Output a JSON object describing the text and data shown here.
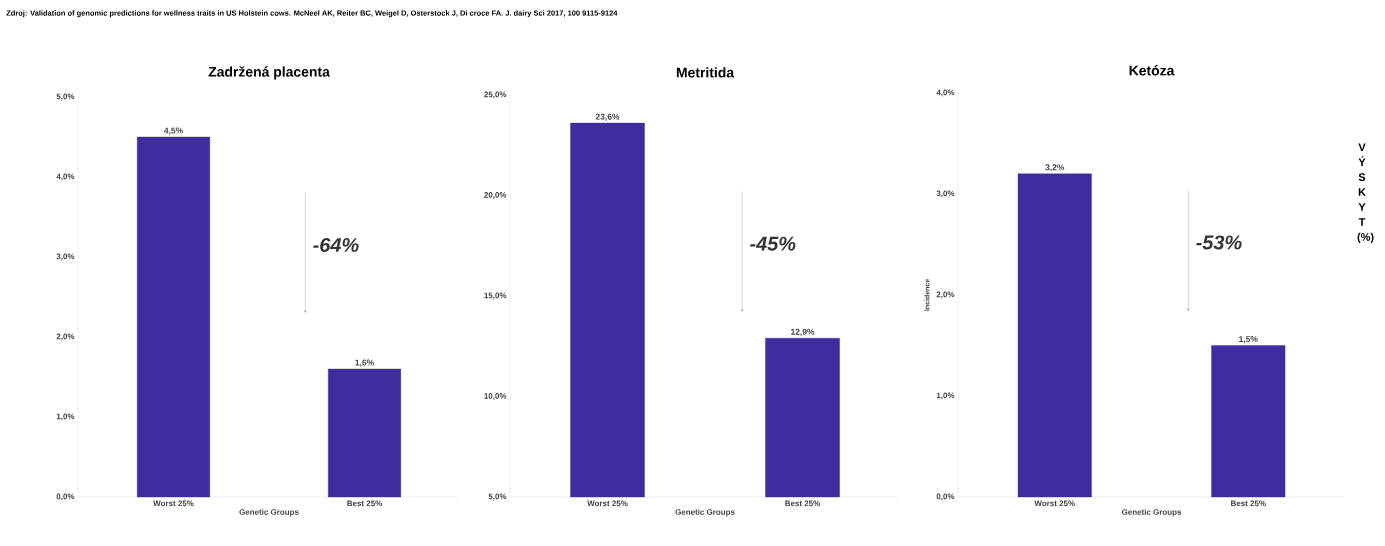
{
  "chart_data": [
    {
      "type": "bar",
      "title": "Zadržená placenta",
      "xlabel": "Genetic Groups",
      "categories": [
        "Worst 25%",
        "Best 25%"
      ],
      "values": [
        4.5,
        1.6
      ],
      "value_labels": [
        "4,5%",
        "1,6%"
      ],
      "color": "#3f2d9e",
      "ylim": [
        0,
        5
      ],
      "yticks": [
        {
          "value": 0,
          "label": "0,0%"
        },
        {
          "value": 1,
          "label": "1,0%"
        },
        {
          "value": 2,
          "label": "2,0%"
        },
        {
          "value": 3,
          "label": "3,0%"
        },
        {
          "value": 4,
          "label": "4,0%"
        },
        {
          "value": 5,
          "label": "5,0%"
        }
      ],
      "grid": false,
      "annotations": [
        "Zdroj: Validation of genomic predictions for wellness traits in US Holstein cows. McNeel AK, Reiter BC, Weigel D, Osterstock J, Di croce FA. J. dairy Sci 2017, 100 9115-9124",
        "-64%"
      ]
    },
    {
      "type": "bar",
      "title": "Metritida",
      "xlabel": "Genetic Groups",
      "categories": [
        "Worst 25%",
        "Best 25%"
      ],
      "values": [
        23.6,
        12.9
      ],
      "value_labels": [
        "23,6%",
        "12,9%"
      ],
      "color": "#3f2d9e",
      "ylim": [
        5,
        25
      ],
      "yticks": [
        {
          "value": 5,
          "label": "5,0%"
        },
        {
          "value": 10,
          "label": "10,0%"
        },
        {
          "value": 15,
          "label": "15,0%"
        },
        {
          "value": 20,
          "label": "20,0%"
        },
        {
          "value": 25,
          "label": "25,0%"
        }
      ],
      "grid": false,
      "annotations": [
        "-45%"
      ]
    },
    {
      "type": "bar",
      "title": "Ketóza",
      "xlabel": "Genetic Groups",
      "ylabel": "Incidence",
      "categories": [
        "Worst 25%",
        "Best 25%"
      ],
      "values": [
        3.2,
        1.5
      ],
      "value_labels": [
        "3,2%",
        "1,5%"
      ],
      "color": "#3f2d9e",
      "ylim": [
        0,
        4
      ],
      "yticks": [
        {
          "value": 0,
          "label": "0,0%"
        },
        {
          "value": 1,
          "label": "1,0%"
        },
        {
          "value": 2,
          "label": "2,0%"
        },
        {
          "value": 3,
          "label": "3,0%"
        },
        {
          "value": 4,
          "label": "4,0%"
        }
      ],
      "grid": false,
      "annotations": [
        "-53%",
        "V Ý S K Y T (%)"
      ]
    }
  ]
}
